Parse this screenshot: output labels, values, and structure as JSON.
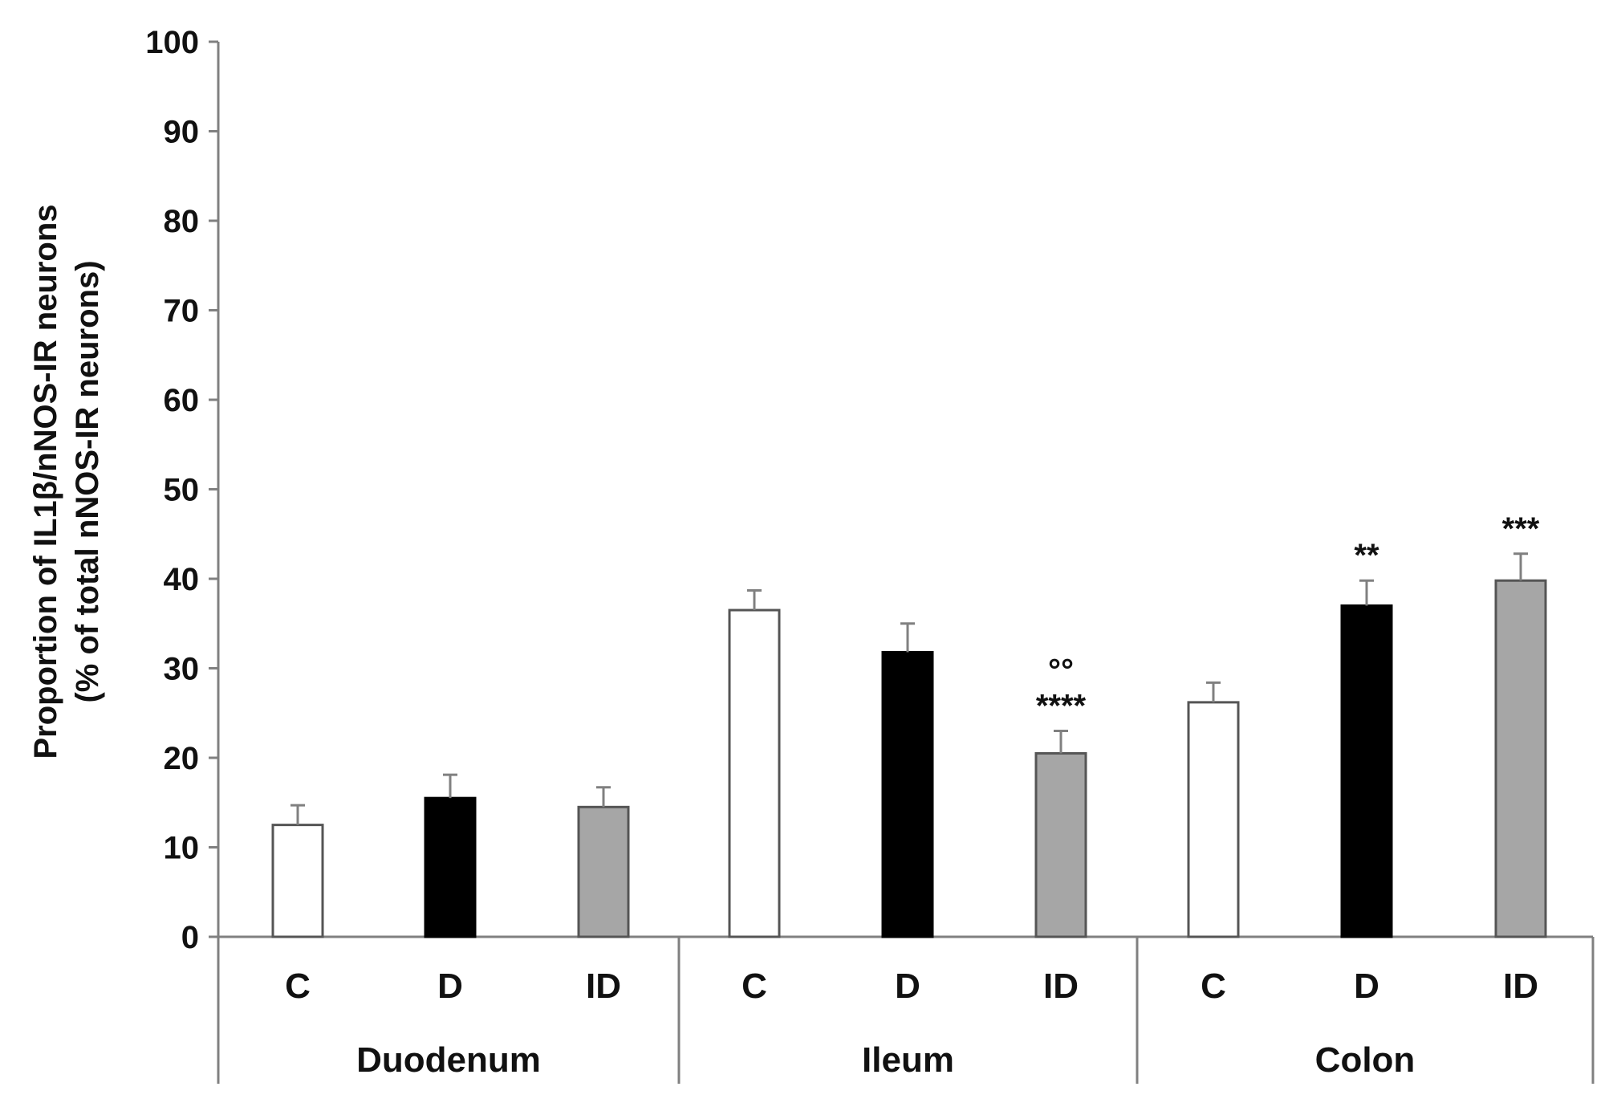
{
  "chart_data": {
    "type": "bar",
    "title": "",
    "ylabel_line1": "Proportion of IL1β/nNOS-IR neurons",
    "ylabel_line2": "(% of total nNOS-IR neurons)",
    "xlabel": "",
    "ylim": [
      0,
      100
    ],
    "yticks": [
      "0",
      "10",
      "20",
      "30",
      "40",
      "50",
      "60",
      "70",
      "80",
      "90",
      "100"
    ],
    "grid": false,
    "legend": "none",
    "groups": [
      {
        "name": "Duodenum",
        "bars": [
          {
            "category": "C",
            "value": 12.5,
            "error": 2.2,
            "annotation": []
          },
          {
            "category": "D",
            "value": 15.5,
            "error": 2.6,
            "annotation": []
          },
          {
            "category": "ID",
            "value": 14.5,
            "error": 2.2,
            "annotation": []
          }
        ]
      },
      {
        "name": "Ileum",
        "bars": [
          {
            "category": "C",
            "value": 36.5,
            "error": 2.2,
            "annotation": []
          },
          {
            "category": "D",
            "value": 31.8,
            "error": 3.2,
            "annotation": []
          },
          {
            "category": "ID",
            "value": 20.5,
            "error": 2.5,
            "annotation": [
              "°°",
              "****"
            ]
          }
        ]
      },
      {
        "name": "Colon",
        "bars": [
          {
            "category": "C",
            "value": 26.2,
            "error": 2.2,
            "annotation": []
          },
          {
            "category": "D",
            "value": 37.0,
            "error": 2.8,
            "annotation": [
              "**"
            ]
          },
          {
            "category": "ID",
            "value": 39.8,
            "error": 3.0,
            "annotation": [
              "***"
            ]
          }
        ]
      }
    ],
    "bar_colors": {
      "C": "#ffffff",
      "D": "#000000",
      "ID": "#a6a6a6"
    },
    "bar_strokes": {
      "C": "#555555",
      "D": "#000000",
      "ID": "#555555"
    },
    "axis_color": "#808080"
  }
}
